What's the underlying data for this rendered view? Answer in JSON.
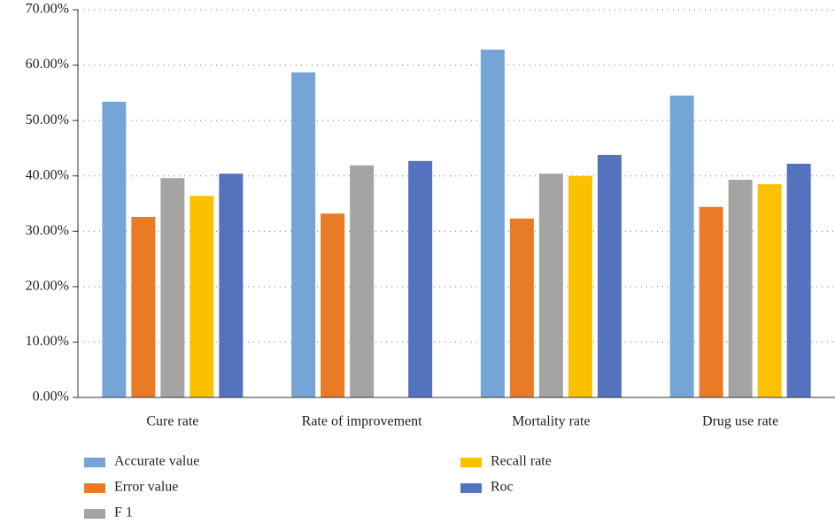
{
  "chart_data": {
    "type": "bar",
    "categories": [
      "Cure rate",
      "Rate of improvement",
      "Mortality rate",
      "Drug use rate"
    ],
    "series": [
      {
        "name": "Accurate value",
        "color": "#75a5d6",
        "values": [
          53.4,
          58.7,
          62.8,
          54.5
        ]
      },
      {
        "name": "Error value",
        "color": "#ea7b26",
        "values": [
          32.6,
          33.2,
          32.3,
          34.4
        ]
      },
      {
        "name": "F 1",
        "color": "#a6a4a2",
        "values": [
          39.6,
          41.9,
          40.4,
          39.3
        ]
      },
      {
        "name": "Recall rate",
        "color": "#fbc000",
        "values": [
          36.4,
          null,
          40.0,
          38.5
        ]
      },
      {
        "name": "Roc",
        "color": "#5572be",
        "values": [
          40.4,
          42.7,
          43.8,
          42.2
        ]
      }
    ],
    "ylim": [
      0,
      70
    ],
    "yticks": [
      {
        "value": 0,
        "label": "0.00%"
      },
      {
        "value": 10,
        "label": "10.00%"
      },
      {
        "value": 20,
        "label": "20.00%"
      },
      {
        "value": 30,
        "label": "30.00%"
      },
      {
        "value": 40,
        "label": "40.00%"
      },
      {
        "value": 50,
        "label": "50.00%"
      },
      {
        "value": 60,
        "label": "60.00%"
      },
      {
        "value": 70,
        "label": "70.00%"
      }
    ],
    "grid": true
  }
}
